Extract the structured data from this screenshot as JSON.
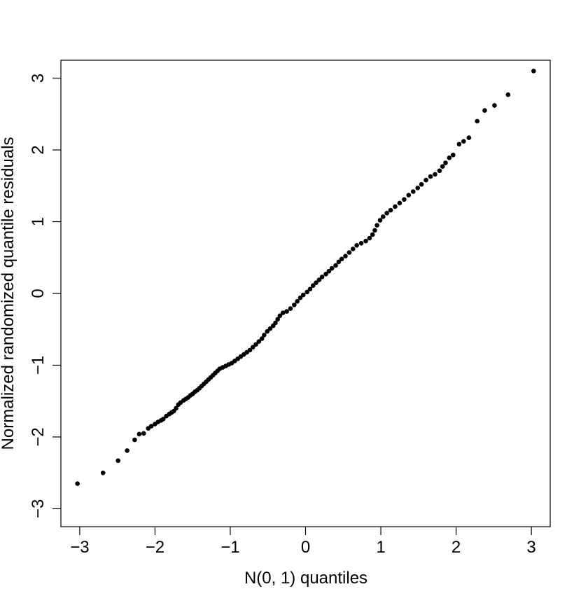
{
  "chart_data": {
    "type": "scatter",
    "title": "",
    "xlabel": "N(0, 1) quantiles",
    "ylabel": "Normalized randomized quantile residuals",
    "xlim": [
      -3.25,
      3.25
    ],
    "ylim": [
      -3.25,
      3.25
    ],
    "xticks": [
      -3,
      -2,
      -1,
      0,
      1,
      2,
      3
    ],
    "yticks": [
      -3,
      -2,
      -1,
      0,
      1,
      2,
      3
    ],
    "xtick_labels": [
      "−3",
      "−2",
      "−1",
      "0",
      "1",
      "2",
      "3"
    ],
    "ytick_labels": [
      "−3",
      "−2",
      "−1",
      "0",
      "1",
      "2",
      "3"
    ],
    "grid": false,
    "legend": "none",
    "marker_color": "#000000",
    "points": [
      [
        -3.03,
        -2.65
      ],
      [
        -2.69,
        -2.5
      ],
      [
        -2.49,
        -2.33
      ],
      [
        -2.37,
        -2.19
      ],
      [
        -2.27,
        -2.04
      ],
      [
        -2.21,
        -1.96
      ],
      [
        -2.15,
        -1.95
      ],
      [
        -2.09,
        -1.88
      ],
      [
        -2.05,
        -1.85
      ],
      [
        -2.0,
        -1.82
      ],
      [
        -1.96,
        -1.79
      ],
      [
        -1.92,
        -1.77
      ],
      [
        -1.89,
        -1.75
      ],
      [
        -1.85,
        -1.71
      ],
      [
        -1.81,
        -1.68
      ],
      [
        -1.78,
        -1.66
      ],
      [
        -1.75,
        -1.64
      ],
      [
        -1.72,
        -1.6
      ],
      [
        -1.69,
        -1.55
      ],
      [
        -1.66,
        -1.52
      ],
      [
        -1.62,
        -1.49
      ],
      [
        -1.59,
        -1.47
      ],
      [
        -1.56,
        -1.45
      ],
      [
        -1.53,
        -1.42
      ],
      [
        -1.5,
        -1.4
      ],
      [
        -1.47,
        -1.37
      ],
      [
        -1.44,
        -1.35
      ],
      [
        -1.41,
        -1.32
      ],
      [
        -1.38,
        -1.29
      ],
      [
        -1.35,
        -1.26
      ],
      [
        -1.32,
        -1.23
      ],
      [
        -1.29,
        -1.2
      ],
      [
        -1.26,
        -1.17
      ],
      [
        -1.23,
        -1.14
      ],
      [
        -1.2,
        -1.11
      ],
      [
        -1.17,
        -1.08
      ],
      [
        -1.14,
        -1.05
      ],
      [
        -1.1,
        -1.03
      ],
      [
        -1.06,
        -1.01
      ],
      [
        -1.02,
        -0.99
      ],
      [
        -0.98,
        -0.97
      ],
      [
        -0.94,
        -0.94
      ],
      [
        -0.9,
        -0.91
      ],
      [
        -0.86,
        -0.88
      ],
      [
        -0.82,
        -0.85
      ],
      [
        -0.78,
        -0.82
      ],
      [
        -0.74,
        -0.79
      ],
      [
        -0.7,
        -0.75
      ],
      [
        -0.66,
        -0.71
      ],
      [
        -0.62,
        -0.67
      ],
      [
        -0.58,
        -0.63
      ],
      [
        -0.55,
        -0.58
      ],
      [
        -0.51,
        -0.53
      ],
      [
        -0.47,
        -0.49
      ],
      [
        -0.43,
        -0.45
      ],
      [
        -0.4,
        -0.41
      ],
      [
        -0.37,
        -0.36
      ],
      [
        -0.34,
        -0.31
      ],
      [
        -0.3,
        -0.27
      ],
      [
        -0.25,
        -0.25
      ],
      [
        -0.2,
        -0.21
      ],
      [
        -0.15,
        -0.16
      ],
      [
        -0.11,
        -0.11
      ],
      [
        -0.07,
        -0.06
      ],
      [
        -0.03,
        -0.02
      ],
      [
        0.02,
        0.02
      ],
      [
        0.06,
        0.06
      ],
      [
        0.1,
        0.11
      ],
      [
        0.14,
        0.15
      ],
      [
        0.18,
        0.19
      ],
      [
        0.22,
        0.23
      ],
      [
        0.27,
        0.27
      ],
      [
        0.31,
        0.31
      ],
      [
        0.35,
        0.35
      ],
      [
        0.4,
        0.39
      ],
      [
        0.44,
        0.44
      ],
      [
        0.48,
        0.48
      ],
      [
        0.53,
        0.52
      ],
      [
        0.58,
        0.57
      ],
      [
        0.63,
        0.62
      ],
      [
        0.68,
        0.67
      ],
      [
        0.74,
        0.7
      ],
      [
        0.8,
        0.73
      ],
      [
        0.85,
        0.77
      ],
      [
        0.89,
        0.82
      ],
      [
        0.92,
        0.88
      ],
      [
        0.95,
        0.95
      ],
      [
        0.99,
        1.02
      ],
      [
        1.03,
        1.07
      ],
      [
        1.08,
        1.12
      ],
      [
        1.13,
        1.16
      ],
      [
        1.19,
        1.21
      ],
      [
        1.25,
        1.26
      ],
      [
        1.31,
        1.31
      ],
      [
        1.37,
        1.37
      ],
      [
        1.43,
        1.42
      ],
      [
        1.49,
        1.47
      ],
      [
        1.54,
        1.52
      ],
      [
        1.6,
        1.58
      ],
      [
        1.66,
        1.63
      ],
      [
        1.72,
        1.66
      ],
      [
        1.78,
        1.71
      ],
      [
        1.82,
        1.77
      ],
      [
        1.86,
        1.82
      ],
      [
        1.91,
        1.89
      ],
      [
        1.96,
        1.93
      ],
      [
        2.04,
        2.08
      ],
      [
        2.1,
        2.12
      ],
      [
        2.17,
        2.17
      ],
      [
        2.28,
        2.4
      ],
      [
        2.38,
        2.55
      ],
      [
        2.51,
        2.62
      ],
      [
        2.69,
        2.77
      ],
      [
        3.03,
        3.1
      ]
    ]
  }
}
